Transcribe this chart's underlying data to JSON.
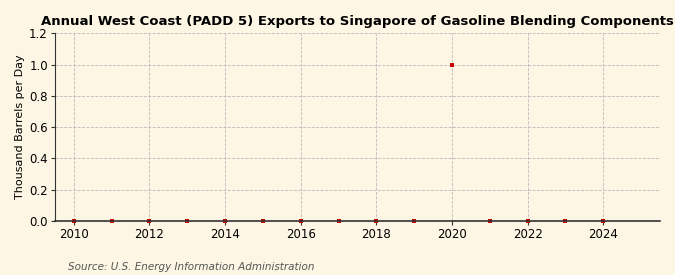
{
  "title": "Annual West Coast (PADD 5) Exports to Singapore of Gasoline Blending Components",
  "ylabel": "Thousand Barrels per Day",
  "source": "Source: U.S. Energy Information Administration",
  "xlim": [
    2009.5,
    2025.5
  ],
  "ylim": [
    0.0,
    1.2
  ],
  "yticks": [
    0.0,
    0.2,
    0.4,
    0.6,
    0.8,
    1.0,
    1.2
  ],
  "xticks": [
    2010,
    2012,
    2014,
    2016,
    2018,
    2020,
    2022,
    2024
  ],
  "background_color": "#fdf6e4",
  "grid_color": "#bbbbbb",
  "spine_color": "#333333",
  "data_color": "#cc0000",
  "data_x": [
    2010,
    2011,
    2012,
    2013,
    2014,
    2015,
    2016,
    2017,
    2018,
    2019,
    2020,
    2021,
    2022,
    2023,
    2024
  ],
  "data_y": [
    0.0,
    0.0,
    0.0,
    0.0,
    0.0,
    0.0,
    0.0,
    0.0,
    0.0,
    0.0,
    1.0,
    0.0,
    0.0,
    0.0,
    0.0
  ],
  "marker_size": 3.5,
  "title_fontsize": 9.5,
  "label_fontsize": 8.0,
  "tick_fontsize": 8.5,
  "source_fontsize": 7.5
}
